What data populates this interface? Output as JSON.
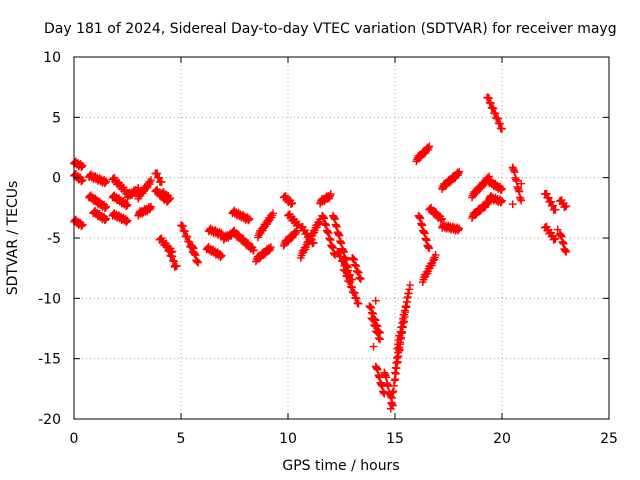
{
  "chart_data": {
    "type": "scatter",
    "title": "Day 181 of 2024, Sidereal Day-to-day VTEC variation (SDTVAR) for receiver mayg",
    "xlabel": "GPS time / hours",
    "ylabel": "SDTVAR / TECUs",
    "xlim": [
      0,
      25
    ],
    "ylim": [
      -20,
      10
    ],
    "xticks": [
      0,
      5,
      10,
      15,
      20,
      25
    ],
    "yticks": [
      -20,
      -15,
      -10,
      -5,
      0,
      5,
      10
    ],
    "grid": true,
    "marker": "plus",
    "color": "#ff0000",
    "tracks": [
      {
        "x": [
          0.0,
          0.4
        ],
        "y": [
          1.3,
          0.9
        ]
      },
      {
        "x": [
          0.0,
          0.4
        ],
        "y": [
          0.3,
          -0.3
        ]
      },
      {
        "x": [
          0.0,
          0.4
        ],
        "y": [
          -3.5,
          -4.0
        ]
      },
      {
        "x": [
          0.7,
          1.5
        ],
        "y": [
          0.2,
          -0.4
        ]
      },
      {
        "x": [
          0.7,
          1.5
        ],
        "y": [
          -1.5,
          -2.5
        ]
      },
      {
        "x": [
          0.9,
          1.5
        ],
        "y": [
          -2.8,
          -3.5
        ]
      },
      {
        "x": [
          1.8,
          2.5
        ],
        "y": [
          0.0,
          -1.3
        ]
      },
      {
        "x": [
          1.8,
          2.5
        ],
        "y": [
          -1.5,
          -2.3
        ]
      },
      {
        "x": [
          1.8,
          2.5
        ],
        "y": [
          -3.0,
          -3.6
        ]
      },
      {
        "x": [
          2.5,
          3.0
        ],
        "y": [
          -1.5,
          -1.0
        ]
      },
      {
        "x": [
          3.0,
          3.6
        ],
        "y": [
          -1.6,
          -0.3
        ]
      },
      {
        "x": [
          3.0,
          3.6
        ],
        "y": [
          -3.0,
          -2.5
        ]
      },
      {
        "x": [
          3.8,
          4.1
        ],
        "y": [
          0.5,
          -0.5
        ]
      },
      {
        "x": [
          3.8,
          4.4
        ],
        "y": [
          -1.0,
          -2.0
        ]
      },
      {
        "x": [
          4.1,
          4.5
        ],
        "y": [
          -1.2,
          -1.8
        ]
      },
      {
        "x": [
          4.0,
          4.6
        ],
        "y": [
          -5.0,
          -6.2
        ]
      },
      {
        "x": [
          4.3,
          4.8
        ],
        "y": [
          -5.5,
          -7.5
        ]
      },
      {
        "x": [
          5.0,
          5.6
        ],
        "y": [
          -3.8,
          -6.3
        ]
      },
      {
        "x": [
          5.5,
          5.8
        ],
        "y": [
          -5.5,
          -7.2
        ]
      },
      {
        "x": [
          6.2,
          6.9
        ],
        "y": [
          -5.8,
          -6.5
        ]
      },
      {
        "x": [
          6.3,
          6.9
        ],
        "y": [
          -4.3,
          -4.7
        ]
      },
      {
        "x": [
          7.0,
          7.4
        ],
        "y": [
          -5.0,
          -4.7
        ]
      },
      {
        "x": [
          7.4,
          8.2
        ],
        "y": [
          -2.8,
          -3.5
        ]
      },
      {
        "x": [
          7.4,
          8.4
        ],
        "y": [
          -4.4,
          -6.0
        ]
      },
      {
        "x": [
          8.6,
          9.3
        ],
        "y": [
          -4.8,
          -3.0
        ]
      },
      {
        "x": [
          8.5,
          9.2
        ],
        "y": [
          -6.8,
          -5.8
        ]
      },
      {
        "x": [
          9.8,
          10.2
        ],
        "y": [
          -1.5,
          -2.2
        ]
      },
      {
        "x": [
          9.8,
          10.4
        ],
        "y": [
          -5.5,
          -4.5
        ]
      },
      {
        "x": [
          10.0,
          10.5
        ],
        "y": [
          -3.0,
          -4.0
        ]
      },
      {
        "x": [
          10.6,
          11.2
        ],
        "y": [
          -4.0,
          -5.5
        ]
      },
      {
        "x": [
          10.6,
          11.5
        ],
        "y": [
          -6.5,
          -3.5
        ]
      },
      {
        "x": [
          11.5,
          12.0
        ],
        "y": [
          -2.0,
          -1.5
        ]
      },
      {
        "x": [
          11.6,
          12.2
        ],
        "y": [
          -3.0,
          -6.5
        ]
      },
      {
        "x": [
          12.1,
          12.8
        ],
        "y": [
          -3.0,
          -7.5
        ]
      },
      {
        "x": [
          12.3,
          13.0
        ],
        "y": [
          -6.0,
          -8.5
        ]
      },
      {
        "x": [
          12.6,
          13.3
        ],
        "y": [
          -7.5,
          -10.5
        ]
      },
      {
        "x": [
          13.0,
          13.4
        ],
        "y": [
          -6.5,
          -8.5
        ]
      },
      {
        "x": [
          13.8,
          14.3
        ],
        "y": [
          -10.5,
          -13.0
        ]
      },
      {
        "x": [
          13.9,
          14.3
        ],
        "y": [
          -11.5,
          -13.5
        ]
      },
      {
        "x": [
          14.1,
          14.5
        ],
        "y": [
          -15.5,
          -18.0
        ]
      },
      {
        "x": [
          14.5,
          14.9
        ],
        "y": [
          -16.0,
          -19.0
        ]
      },
      {
        "x": [
          14.8,
          15.4
        ],
        "y": [
          -19.0,
          -12.0
        ]
      },
      {
        "x": [
          15.0,
          15.6
        ],
        "y": [
          -16.0,
          -10.0
        ]
      },
      {
        "x": [
          15.1,
          15.7
        ],
        "y": [
          -14.0,
          -9.0
        ]
      },
      {
        "x": [
          16.0,
          16.6
        ],
        "y": [
          1.5,
          2.5
        ]
      },
      {
        "x": [
          16.1,
          16.6
        ],
        "y": [
          -3.0,
          -6.0
        ]
      },
      {
        "x": [
          16.6,
          17.2
        ],
        "y": [
          -2.5,
          -3.5
        ]
      },
      {
        "x": [
          16.3,
          16.9
        ],
        "y": [
          -8.5,
          -6.5
        ]
      },
      {
        "x": [
          17.2,
          18.0
        ],
        "y": [
          -0.8,
          0.4
        ]
      },
      {
        "x": [
          17.2,
          18.0
        ],
        "y": [
          -4.0,
          -4.3
        ]
      },
      {
        "x": [
          18.6,
          19.4
        ],
        "y": [
          -1.5,
          0.0
        ]
      },
      {
        "x": [
          18.6,
          19.4
        ],
        "y": [
          -3.2,
          -2.0
        ]
      },
      {
        "x": [
          19.3,
          20.0
        ],
        "y": [
          6.8,
          4.0
        ]
      },
      {
        "x": [
          19.4,
          20.0
        ],
        "y": [
          -0.3,
          -1.0
        ]
      },
      {
        "x": [
          19.4,
          20.0
        ],
        "y": [
          -1.6,
          -2.0
        ]
      },
      {
        "x": [
          20.5,
          20.9
        ],
        "y": [
          1.0,
          -2.0
        ]
      },
      {
        "x": [
          22.0,
          22.5
        ],
        "y": [
          -1.2,
          -2.8
        ]
      },
      {
        "x": [
          22.0,
          22.5
        ],
        "y": [
          -4.0,
          -5.2
        ]
      },
      {
        "x": [
          22.7,
          23.0
        ],
        "y": [
          -1.8,
          -2.5
        ]
      },
      {
        "x": [
          22.7,
          23.0
        ],
        "y": [
          -4.5,
          -6.3
        ]
      }
    ],
    "points": [
      {
        "x": 4.7,
        "y": -7.4
      },
      {
        "x": 14.0,
        "y": -14.0
      },
      {
        "x": 14.1,
        "y": -10.2
      },
      {
        "x": 20.5,
        "y": -2.2
      },
      {
        "x": 20.9,
        "y": -0.5
      },
      {
        "x": 22.6,
        "y": -4.3
      }
    ]
  }
}
